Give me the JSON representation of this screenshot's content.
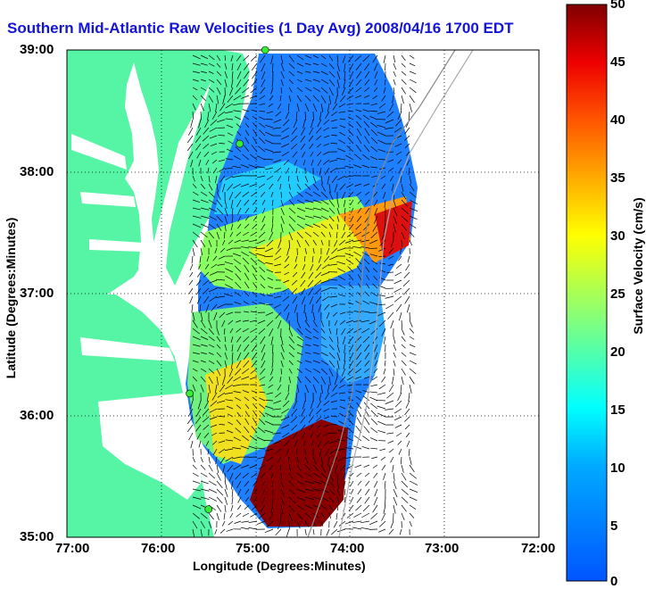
{
  "title": "Southern Mid-Atlantic Raw Velocities (1 Day Avg) 2008/04/16 1700 EDT",
  "axes": {
    "x_label": "Longitude (Degrees:Minutes)",
    "y_label": "Latitude (Degrees:Minutes)",
    "x_ticks": [
      "77:00",
      "76:00",
      "75:00",
      "74:00",
      "73:00",
      "72:00"
    ],
    "y_ticks": [
      "39:00",
      "38:00",
      "37:00",
      "36:00",
      "35:00"
    ]
  },
  "colorbar": {
    "label": "Surface Velocity (cm/s)",
    "ticks": [
      "50",
      "45",
      "40",
      "35",
      "30",
      "25",
      "20",
      "15",
      "10",
      "5",
      "0"
    ],
    "range": [
      0,
      50
    ]
  },
  "colors": {
    "land": "#55f5a5",
    "title": "#1414d8",
    "stations": "#33ee33"
  },
  "stations": [
    {
      "name": "station-1",
      "lon": -74.9,
      "lat": 39.0
    },
    {
      "name": "station-2",
      "lon": -75.17,
      "lat": 38.23
    },
    {
      "name": "station-3",
      "lon": -75.7,
      "lat": 36.18
    },
    {
      "name": "station-4",
      "lon": -75.5,
      "lat": 35.23
    }
  ]
}
